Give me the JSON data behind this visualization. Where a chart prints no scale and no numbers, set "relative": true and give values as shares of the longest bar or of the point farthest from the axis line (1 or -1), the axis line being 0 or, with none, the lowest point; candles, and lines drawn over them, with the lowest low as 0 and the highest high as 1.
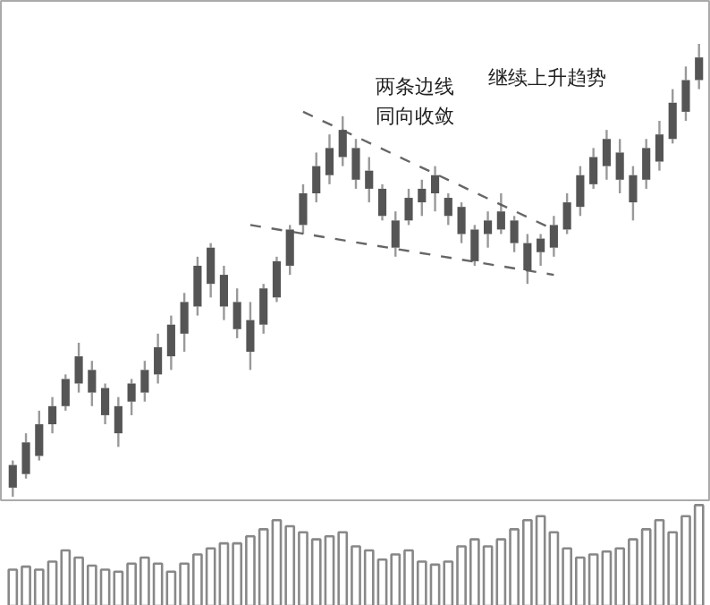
{
  "chart_data": [
    {
      "type": "candlestick",
      "relative": true,
      "color": "#555555",
      "grid": false,
      "tick_labels": false,
      "categories": [
        null,
        null,
        null,
        null,
        null,
        null,
        null,
        null,
        null,
        null,
        null,
        null,
        null,
        null,
        null,
        null,
        null,
        null,
        null,
        null,
        null,
        null,
        null,
        null,
        null,
        null,
        null,
        null,
        null,
        null,
        null,
        null,
        null,
        null,
        null,
        null,
        null,
        null,
        null,
        null,
        null,
        null,
        null,
        null,
        null,
        null,
        null,
        null,
        null,
        null,
        null,
        null,
        null
      ],
      "ohlc": [
        [
          0.02,
          0.08,
          0,
          0.07
        ],
        [
          0.05,
          0.14,
          0.04,
          0.12
        ],
        [
          0.09,
          0.19,
          0.08,
          0.16
        ],
        [
          0.16,
          0.22,
          0.14,
          0.2
        ],
        [
          0.2,
          0.27,
          0.19,
          0.26
        ],
        [
          0.25,
          0.34,
          0.23,
          0.31
        ],
        [
          0.23,
          0.3,
          0.2,
          0.28
        ],
        [
          0.18,
          0.25,
          0.16,
          0.24
        ],
        [
          0.14,
          0.22,
          0.11,
          0.2
        ],
        [
          0.21,
          0.26,
          0.18,
          0.25
        ],
        [
          0.23,
          0.3,
          0.21,
          0.28
        ],
        [
          0.27,
          0.36,
          0.25,
          0.33
        ],
        [
          0.31,
          0.4,
          0.28,
          0.38
        ],
        [
          0.36,
          0.45,
          0.32,
          0.43
        ],
        [
          0.42,
          0.53,
          0.4,
          0.51
        ],
        [
          0.47,
          0.56,
          0.44,
          0.55
        ],
        [
          0.42,
          0.51,
          0.39,
          0.49
        ],
        [
          0.37,
          0.46,
          0.35,
          0.43
        ],
        [
          0.32,
          0.43,
          0.28,
          0.39
        ],
        [
          0.38,
          0.47,
          0.36,
          0.46
        ],
        [
          0.44,
          0.53,
          0.43,
          0.52
        ],
        [
          0.51,
          0.6,
          0.49,
          0.59
        ],
        [
          0.6,
          0.69,
          0.58,
          0.67
        ],
        [
          0.67,
          0.76,
          0.65,
          0.73
        ],
        [
          0.71,
          0.8,
          0.69,
          0.77
        ],
        [
          0.75,
          0.84,
          0.73,
          0.81
        ],
        [
          0.7,
          0.79,
          0.68,
          0.77
        ],
        [
          0.68,
          0.75,
          0.65,
          0.72
        ],
        [
          0.62,
          0.69,
          0.61,
          0.68
        ],
        [
          0.55,
          0.63,
          0.53,
          0.61
        ],
        [
          0.61,
          0.68,
          0.6,
          0.66
        ],
        [
          0.65,
          0.7,
          0.62,
          0.68
        ],
        [
          0.67,
          0.73,
          0.63,
          0.71
        ],
        [
          0.62,
          0.67,
          0.6,
          0.66
        ],
        [
          0.58,
          0.65,
          0.56,
          0.64
        ],
        [
          0.52,
          0.6,
          0.51,
          0.59
        ],
        [
          0.58,
          0.63,
          0.55,
          0.61
        ],
        [
          0.59,
          0.67,
          0.58,
          0.63
        ],
        [
          0.56,
          0.62,
          0.54,
          0.61
        ],
        [
          0.5,
          0.58,
          0.47,
          0.56
        ],
        [
          0.54,
          0.58,
          0.51,
          0.57
        ],
        [
          0.55,
          0.62,
          0.53,
          0.6
        ],
        [
          0.59,
          0.67,
          0.58,
          0.65
        ],
        [
          0.64,
          0.73,
          0.62,
          0.71
        ],
        [
          0.69,
          0.77,
          0.68,
          0.75
        ],
        [
          0.73,
          0.81,
          0.7,
          0.79
        ],
        [
          0.7,
          0.79,
          0.67,
          0.76
        ],
        [
          0.65,
          0.73,
          0.61,
          0.71
        ],
        [
          0.7,
          0.79,
          0.68,
          0.77
        ],
        [
          0.74,
          0.83,
          0.72,
          0.8
        ],
        [
          0.79,
          0.9,
          0.78,
          0.87
        ],
        [
          0.85,
          0.95,
          0.83,
          0.92
        ],
        [
          0.92,
          1.0,
          0.9,
          0.97
        ]
      ],
      "series": [
        {
          "type": "line",
          "line_style": "dashed",
          "color": "#666666",
          "values": [
            null,
            null,
            null,
            null,
            null,
            null,
            null,
            null,
            null,
            null,
            null,
            null,
            null,
            null,
            null,
            null,
            null,
            null,
            null,
            null,
            null,
            null,
            0.85,
            null,
            null,
            null,
            null,
            null,
            null,
            null,
            null,
            null,
            null,
            null,
            null,
            null,
            null,
            null,
            null,
            null,
            null,
            0.59,
            null,
            null,
            null,
            null,
            null,
            null,
            null,
            null,
            null,
            null,
            null
          ]
        },
        {
          "type": "line",
          "line_style": "dashed",
          "color": "#666666",
          "values": [
            null,
            null,
            null,
            null,
            null,
            null,
            null,
            null,
            null,
            null,
            null,
            null,
            null,
            null,
            null,
            null,
            null,
            null,
            0.6,
            null,
            null,
            null,
            null,
            null,
            null,
            null,
            null,
            null,
            null,
            null,
            null,
            null,
            null,
            null,
            null,
            null,
            null,
            null,
            null,
            null,
            null,
            0.49,
            null,
            null,
            null,
            null,
            null,
            null,
            null,
            null,
            null,
            null,
            null
          ]
        }
      ],
      "annotations": [
        "两条边线",
        "同向收敛",
        "继续上升趋势"
      ]
    },
    {
      "type": "bar",
      "relative": true,
      "color": "#888888",
      "grid": false,
      "tick_labels": false,
      "categories": [
        null,
        null,
        null,
        null,
        null,
        null,
        null,
        null,
        null,
        null,
        null,
        null,
        null,
        null,
        null,
        null,
        null,
        null,
        null,
        null,
        null,
        null,
        null,
        null,
        null,
        null,
        null,
        null,
        null,
        null,
        null,
        null,
        null,
        null,
        null,
        null,
        null,
        null,
        null,
        null,
        null,
        null,
        null,
        null,
        null,
        null,
        null,
        null,
        null,
        null,
        null,
        null,
        null
      ],
      "values": [
        0.36,
        0.39,
        0.36,
        0.44,
        0.55,
        0.48,
        0.4,
        0.36,
        0.34,
        0.42,
        0.48,
        0.42,
        0.34,
        0.42,
        0.51,
        0.57,
        0.62,
        0.62,
        0.69,
        0.76,
        0.85,
        0.79,
        0.73,
        0.66,
        0.69,
        0.73,
        0.59,
        0.55,
        0.46,
        0.51,
        0.55,
        0.44,
        0.41,
        0.44,
        0.59,
        0.66,
        0.59,
        0.66,
        0.76,
        0.85,
        0.89,
        0.73,
        0.57,
        0.48,
        0.51,
        0.54,
        0.57,
        0.66,
        0.76,
        0.85,
        0.73,
        0.89,
        1.0
      ]
    }
  ]
}
